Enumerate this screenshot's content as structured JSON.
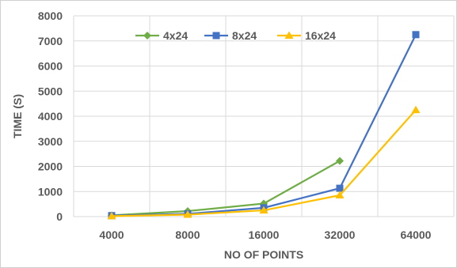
{
  "chart_data": {
    "type": "line",
    "categories": [
      "4000",
      "8000",
      "16000",
      "32000",
      "64000"
    ],
    "series": [
      {
        "name": "4x24",
        "color": "#70ad47",
        "marker": "diamond",
        "values": [
          50,
          220,
          520,
          2220,
          null
        ]
      },
      {
        "name": "8x24",
        "color": "#4472c4",
        "marker": "square",
        "values": [
          40,
          110,
          350,
          1130,
          7250
        ]
      },
      {
        "name": "16x24",
        "color": "#ffc000",
        "marker": "triangle",
        "values": [
          20,
          80,
          250,
          850,
          4250
        ]
      }
    ],
    "xlabel": "NO OF POINTS",
    "ylabel": "TIME (S)",
    "ylim": [
      0,
      8000
    ],
    "yticks": [
      0,
      1000,
      2000,
      3000,
      4000,
      5000,
      6000,
      7000,
      8000
    ],
    "grid": true,
    "legend_position": "top"
  }
}
